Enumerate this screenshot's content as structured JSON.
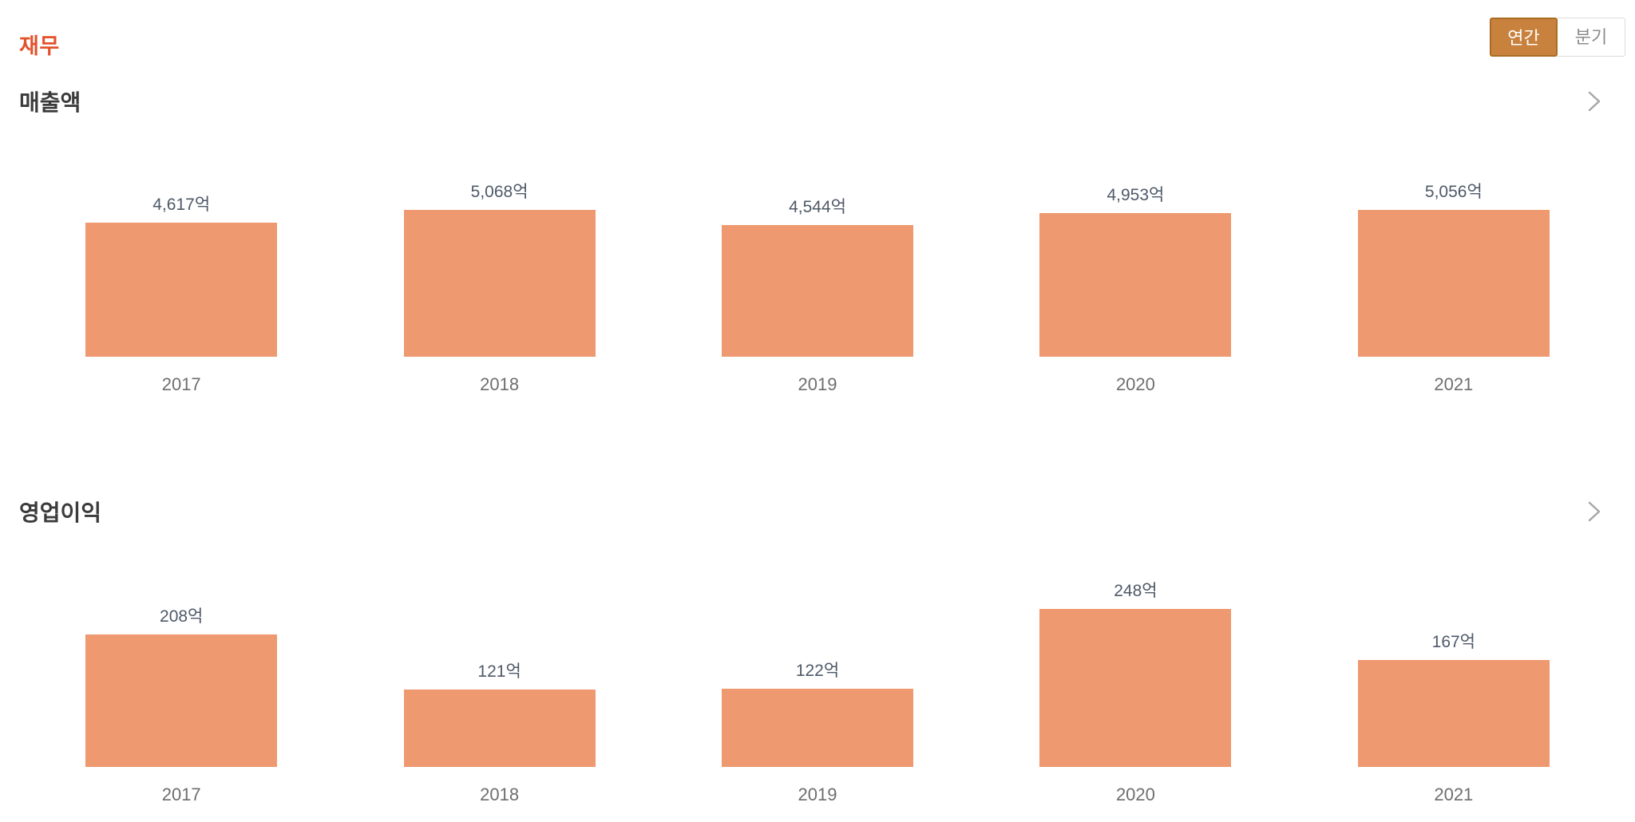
{
  "page": {
    "title": "재무"
  },
  "toggle": {
    "options": [
      {
        "label": "연간",
        "selected": true
      },
      {
        "label": "분기",
        "selected": false
      }
    ]
  },
  "sections": [
    {
      "title": "매출액"
    },
    {
      "title": "영업이익"
    }
  ],
  "colors": {
    "accent": "#e2532d",
    "bar": "#ee9970",
    "toggle_selected_bg": "#c8823d",
    "toggle_selected_border": "#aa6c24",
    "value_label": "#4e5968",
    "year_label": "#6e6e6e",
    "chevron": "#a6a6a6"
  },
  "icons": {
    "section_link": "chevron-right-icon"
  },
  "chart_data": [
    {
      "type": "bar",
      "title": "매출액",
      "categories": [
        "2017",
        "2018",
        "2019",
        "2020",
        "2021"
      ],
      "values": [
        4617,
        5068,
        4544,
        4953,
        5056
      ],
      "value_labels": [
        "4,617억",
        "5,068억",
        "4,544억",
        "4,953억",
        "5,056억"
      ],
      "unit": "억",
      "xlabel": "",
      "ylabel": "",
      "ylim": [
        0,
        5500
      ],
      "grid": false,
      "legend": false,
      "bar_color": "#ee9970"
    },
    {
      "type": "bar",
      "title": "영업이익",
      "categories": [
        "2017",
        "2018",
        "2019",
        "2020",
        "2021"
      ],
      "values": [
        208,
        121,
        122,
        248,
        167
      ],
      "value_labels": [
        "208억",
        "121억",
        "122억",
        "248억",
        "167억"
      ],
      "unit": "억",
      "xlabel": "",
      "ylabel": "",
      "ylim": [
        0,
        250
      ],
      "grid": false,
      "legend": false,
      "bar_color": "#ee9970"
    }
  ]
}
